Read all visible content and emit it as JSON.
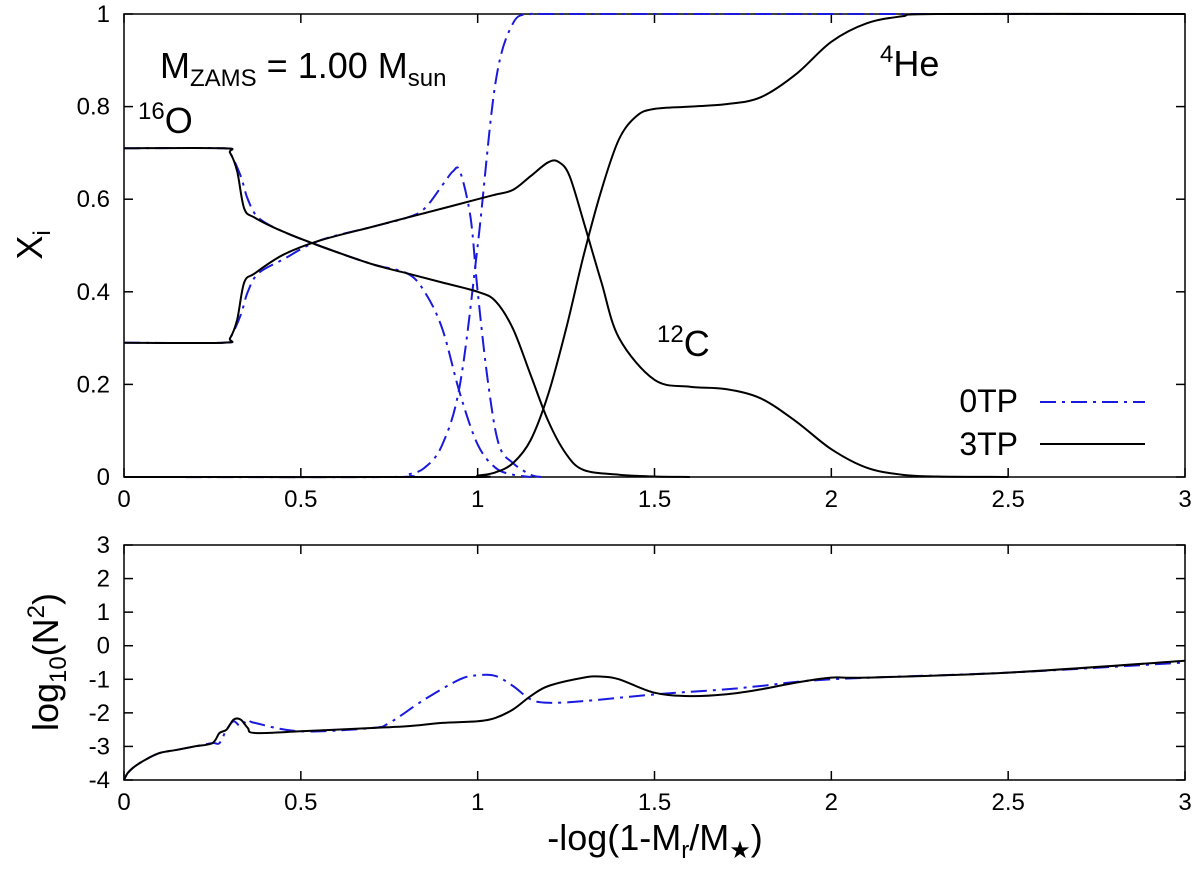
{
  "chart_data": [
    {
      "type": "line",
      "panel": "top",
      "ylabel": "X",
      "ylabel_sub": "i",
      "xlim": [
        0,
        3
      ],
      "ylim": [
        0,
        1
      ],
      "xticks": [
        "0",
        "0.5",
        "1",
        "1.5",
        "2",
        "2.5",
        "3"
      ],
      "yticks": [
        "0",
        "0.2",
        "0.4",
        "0.6",
        "0.8",
        "1"
      ],
      "annotation_mass": {
        "m": "M",
        "m_sub": "ZAMS",
        "eq": " = 1.00 M",
        "unit_sub": "sun"
      },
      "species_labels": [
        {
          "sup": "16",
          "base": "O"
        },
        {
          "sup": "12",
          "base": "C"
        },
        {
          "sup": "4",
          "base": "He"
        }
      ],
      "legend": [
        {
          "name": "0TP",
          "style": "dash-dot",
          "color": "#1a1adf"
        },
        {
          "name": "3TP",
          "style": "solid",
          "color": "#000000"
        }
      ],
      "series": [
        {
          "name": "0TP O16",
          "style": "dash-dot",
          "color": "#1a1adf",
          "x": [
            0,
            0.28,
            0.3,
            0.33,
            0.35,
            0.38,
            0.45,
            0.55,
            0.7,
            0.8,
            0.85,
            0.9,
            0.95,
            1.0,
            1.05,
            1.1,
            1.15
          ],
          "y": [
            0.71,
            0.71,
            0.7,
            0.65,
            0.6,
            0.56,
            0.53,
            0.5,
            0.46,
            0.44,
            0.4,
            0.32,
            0.18,
            0.07,
            0.02,
            0.005,
            0
          ]
        },
        {
          "name": "0TP C12",
          "style": "dash-dot",
          "color": "#1a1adf",
          "x": [
            0,
            0.28,
            0.3,
            0.33,
            0.35,
            0.38,
            0.45,
            0.55,
            0.7,
            0.8,
            0.85,
            0.9,
            0.93,
            0.95,
            0.98,
            1.0,
            1.03,
            1.06,
            1.1,
            1.15,
            1.18
          ],
          "y": [
            0.29,
            0.29,
            0.3,
            0.35,
            0.4,
            0.44,
            0.47,
            0.51,
            0.54,
            0.56,
            0.58,
            0.63,
            0.66,
            0.66,
            0.56,
            0.4,
            0.2,
            0.07,
            0.03,
            0.005,
            0
          ]
        },
        {
          "name": "0TP He4",
          "style": "dash-dot",
          "color": "#1a1adf",
          "x": [
            0,
            0.75,
            0.8,
            0.85,
            0.9,
            0.95,
            1.0,
            1.05,
            1.1,
            1.15,
            1.2,
            1.5,
            2.0,
            3.0
          ],
          "y": [
            0,
            0,
            0.005,
            0.02,
            0.07,
            0.2,
            0.5,
            0.85,
            0.98,
            1.0,
            1.0,
            1.0,
            1.0,
            1.0
          ]
        },
        {
          "name": "3TP O16",
          "style": "solid",
          "color": "#000000",
          "x": [
            0,
            0.28,
            0.3,
            0.32,
            0.34,
            0.37,
            0.45,
            0.55,
            0.7,
            0.8,
            0.9,
            1.0,
            1.05,
            1.1,
            1.15,
            1.2,
            1.25,
            1.3,
            1.4,
            1.5,
            1.6
          ],
          "y": [
            0.71,
            0.71,
            0.7,
            0.66,
            0.58,
            0.56,
            0.53,
            0.5,
            0.46,
            0.44,
            0.42,
            0.4,
            0.38,
            0.32,
            0.22,
            0.12,
            0.05,
            0.015,
            0.005,
            0.001,
            0
          ]
        },
        {
          "name": "3TP C12",
          "style": "solid",
          "color": "#000000",
          "x": [
            0,
            0.28,
            0.3,
            0.32,
            0.34,
            0.37,
            0.45,
            0.55,
            0.7,
            0.8,
            0.9,
            1.0,
            1.05,
            1.1,
            1.15,
            1.2,
            1.23,
            1.26,
            1.3,
            1.35,
            1.4,
            1.5,
            1.6,
            1.7,
            1.8,
            1.9,
            2.0,
            2.1,
            2.2,
            2.3,
            2.5
          ],
          "y": [
            0.29,
            0.29,
            0.3,
            0.34,
            0.42,
            0.44,
            0.48,
            0.51,
            0.54,
            0.56,
            0.58,
            0.6,
            0.61,
            0.62,
            0.65,
            0.68,
            0.68,
            0.65,
            0.55,
            0.42,
            0.3,
            0.21,
            0.195,
            0.19,
            0.17,
            0.12,
            0.06,
            0.02,
            0.005,
            0.001,
            0
          ]
        },
        {
          "name": "3TP He4",
          "style": "solid",
          "color": "#000000",
          "x": [
            0,
            0.95,
            1.0,
            1.05,
            1.1,
            1.15,
            1.2,
            1.25,
            1.3,
            1.35,
            1.4,
            1.45,
            1.5,
            1.6,
            1.7,
            1.8,
            1.9,
            2.0,
            2.1,
            2.2,
            2.3,
            3.0
          ],
          "y": [
            0,
            0,
            0.003,
            0.01,
            0.03,
            0.08,
            0.18,
            0.32,
            0.48,
            0.62,
            0.73,
            0.78,
            0.795,
            0.8,
            0.805,
            0.82,
            0.87,
            0.94,
            0.98,
            0.995,
            1.0,
            1.0
          ]
        }
      ]
    },
    {
      "type": "line",
      "panel": "bottom",
      "xlabel": "-log(1-M",
      "xlabel_sub": "r",
      "xlabel_mid": "/M",
      "xlabel_sub2": "★",
      "xlabel_end": ")",
      "ylabel_pre": "log",
      "ylabel_sub": "10",
      "ylabel_mid": "(N",
      "ylabel_sup": "2",
      "ylabel_end": ")",
      "xlim": [
        0,
        3
      ],
      "ylim": [
        -4,
        3
      ],
      "xticks": [
        "0",
        "0.5",
        "1",
        "1.5",
        "2",
        "2.5",
        "3"
      ],
      "yticks": [
        "-4",
        "-3",
        "-2",
        "-1",
        "0",
        "1",
        "2",
        "3"
      ],
      "series": [
        {
          "name": "0TP",
          "style": "dash-dot",
          "color": "#1a1adf",
          "x": [
            0,
            0.01,
            0.03,
            0.06,
            0.1,
            0.15,
            0.2,
            0.25,
            0.27,
            0.29,
            0.31,
            0.33,
            0.35,
            0.37,
            0.5,
            0.7,
            0.75,
            0.85,
            0.95,
            1.0,
            1.05,
            1.1,
            1.15,
            1.2,
            1.3,
            1.5,
            1.7,
            1.8,
            2.0,
            2.5,
            3.0
          ],
          "y": [
            -4.0,
            -3.8,
            -3.6,
            -3.4,
            -3.2,
            -3.1,
            -3.0,
            -2.9,
            -2.9,
            -2.5,
            -2.25,
            -2.4,
            -2.2,
            -2.3,
            -2.55,
            -2.45,
            -2.3,
            -1.6,
            -1.0,
            -0.88,
            -0.9,
            -1.2,
            -1.6,
            -1.7,
            -1.65,
            -1.45,
            -1.3,
            -1.2,
            -1.0,
            -0.8,
            -0.5
          ]
        },
        {
          "name": "3TP",
          "style": "solid",
          "color": "#000000",
          "x": [
            0,
            0.01,
            0.03,
            0.06,
            0.1,
            0.15,
            0.2,
            0.25,
            0.27,
            0.29,
            0.31,
            0.33,
            0.35,
            0.37,
            0.5,
            0.7,
            0.8,
            0.9,
            1.0,
            1.05,
            1.1,
            1.15,
            1.2,
            1.3,
            1.35,
            1.4,
            1.5,
            1.6,
            1.7,
            1.8,
            1.9,
            2.0,
            2.1,
            2.5,
            3.0
          ],
          "y": [
            -4.0,
            -3.8,
            -3.6,
            -3.4,
            -3.2,
            -3.1,
            -3.0,
            -2.9,
            -2.6,
            -2.5,
            -2.2,
            -2.2,
            -2.45,
            -2.6,
            -2.55,
            -2.45,
            -2.4,
            -2.3,
            -2.25,
            -2.15,
            -1.9,
            -1.5,
            -1.2,
            -0.95,
            -0.92,
            -1.0,
            -1.4,
            -1.5,
            -1.45,
            -1.3,
            -1.1,
            -0.95,
            -0.95,
            -0.8,
            -0.45
          ]
        }
      ]
    }
  ]
}
